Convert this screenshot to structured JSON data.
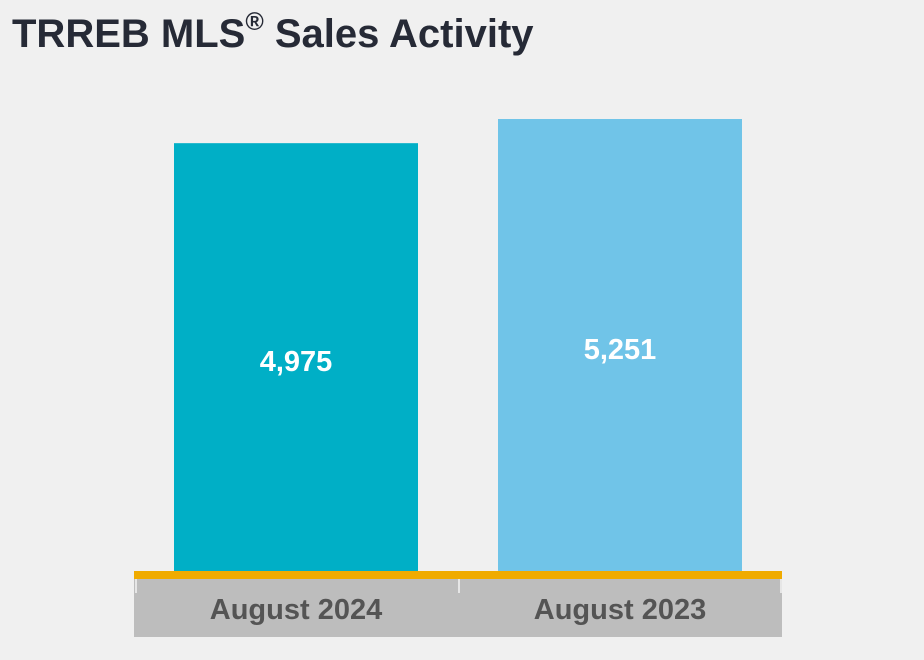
{
  "title": {
    "main": "TRREB MLS",
    "registered_mark": "®",
    "suffix": " Sales Activity"
  },
  "colors": {
    "background": "#f0f0f0",
    "title_text": "#262a36",
    "axis_band": "#bdbdbd",
    "axis_line": "#f0ab00",
    "axis_text": "#545454",
    "value_text": "#ffffff"
  },
  "chart_data": {
    "type": "bar",
    "title": "TRREB MLS® Sales Activity",
    "xlabel": "",
    "ylabel": "",
    "categories": [
      "August 2024",
      "August 2023"
    ],
    "values": [
      4975,
      5251
    ],
    "value_labels": [
      "4,975",
      "5,251"
    ],
    "bar_colors": [
      "#00afc6",
      "#70c4e8"
    ],
    "ylim": [
      0,
      5251
    ],
    "grid": false,
    "legend": "none",
    "show_value_axis": false
  }
}
